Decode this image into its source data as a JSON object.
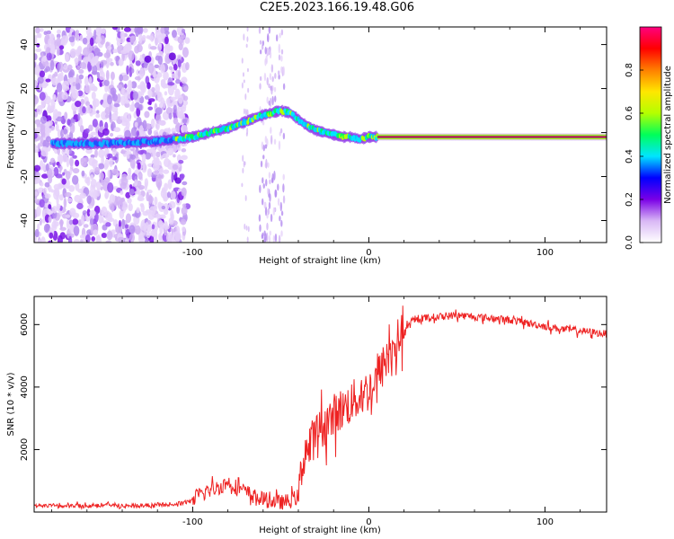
{
  "title": "C2E5.2023.166.19.48.G06",
  "chart_data": [
    {
      "type": "heatmap",
      "xlabel": "Height of straight line (km)",
      "ylabel": "Frequency (Hz)",
      "xlim": [
        -190,
        135
      ],
      "ylim": [
        -50,
        48
      ],
      "xticks": [
        -100,
        0,
        100
      ],
      "yticks": [
        -40,
        -20,
        0,
        20,
        40
      ],
      "colorbar": {
        "label": "Normalized spectral amplitude",
        "range": [
          0,
          1
        ],
        "ticks": [
          "0.0",
          "0.2",
          "0.4",
          "0.6",
          "0.8"
        ],
        "colormap": [
          "#ffffff",
          "#d9b8f5",
          "#7a00e6",
          "#0000ff",
          "#00e5ff",
          "#00ff5a",
          "#b4ff00",
          "#ffe600",
          "#ff7f00",
          "#ff0000",
          "#ff007f"
        ]
      },
      "ridge_frequency_track": {
        "x": [
          -180,
          -150,
          -120,
          -110,
          -100,
          -90,
          -80,
          -70,
          -60,
          -50,
          -45,
          -40,
          -35,
          -30,
          -25,
          -20,
          -15,
          -10,
          -5,
          0,
          10,
          50,
          100,
          135
        ],
        "y": [
          -5,
          -5,
          -4,
          -3,
          -2,
          0,
          2,
          5,
          8,
          10,
          9,
          6,
          3,
          1,
          0,
          -1,
          -2,
          -2,
          -3,
          -2,
          -2,
          -2,
          -2,
          -2
        ]
      },
      "grid": false
    },
    {
      "type": "line",
      "xlabel": "Height of straight line (km)",
      "ylabel": "SNR (10 * v/v)",
      "xlim": [
        -190,
        135
      ],
      "ylim": [
        0,
        6900
      ],
      "xticks": [
        -100,
        0,
        100
      ],
      "yticks": [
        2000,
        4000,
        6000
      ],
      "grid": false,
      "series": [
        {
          "color": "#ee2222",
          "x": [
            -190,
            -170,
            -150,
            -130,
            -110,
            -100,
            -95,
            -90,
            -85,
            -80,
            -75,
            -70,
            -65,
            -60,
            -55,
            -50,
            -45,
            -40,
            -38,
            -36,
            -34,
            -32,
            -30,
            -28,
            -25,
            -20,
            -15,
            -10,
            -5,
            0,
            5,
            10,
            15,
            20,
            25,
            30,
            40,
            50,
            60,
            70,
            80,
            90,
            100,
            110,
            120,
            135
          ],
          "y": [
            200,
            200,
            220,
            200,
            250,
            350,
            600,
            700,
            800,
            950,
            800,
            650,
            500,
            400,
            350,
            300,
            350,
            500,
            1400,
            2100,
            1900,
            2300,
            2500,
            2600,
            2800,
            3100,
            3300,
            3500,
            3700,
            3900,
            4300,
            4900,
            5400,
            5800,
            6100,
            6200,
            6250,
            6300,
            6250,
            6200,
            6150,
            6050,
            5950,
            5850,
            5800,
            5700
          ]
        }
      ]
    }
  ]
}
